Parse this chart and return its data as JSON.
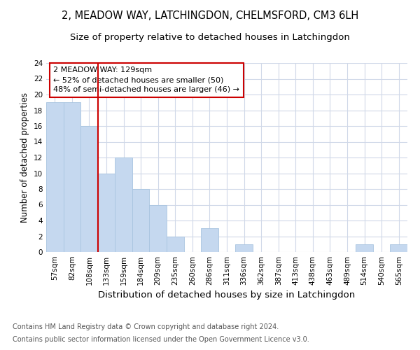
{
  "title_line1": "2, MEADOW WAY, LATCHINGDON, CHELMSFORD, CM3 6LH",
  "title_line2": "Size of property relative to detached houses in Latchingdon",
  "xlabel": "Distribution of detached houses by size in Latchingdon",
  "ylabel": "Number of detached properties",
  "categories": [
    "57sqm",
    "82sqm",
    "108sqm",
    "133sqm",
    "159sqm",
    "184sqm",
    "209sqm",
    "235sqm",
    "260sqm",
    "286sqm",
    "311sqm",
    "336sqm",
    "362sqm",
    "387sqm",
    "413sqm",
    "438sqm",
    "463sqm",
    "489sqm",
    "514sqm",
    "540sqm",
    "565sqm"
  ],
  "values": [
    19,
    19,
    16,
    10,
    12,
    8,
    6,
    2,
    0,
    3,
    0,
    1,
    0,
    0,
    0,
    0,
    0,
    0,
    1,
    0,
    1
  ],
  "bar_color": "#c5d8ef",
  "bar_edge_color": "#a8c4e0",
  "vline_color": "#cc0000",
  "vline_x_index": 2,
  "annotation_text": "2 MEADOW WAY: 129sqm\n← 52% of detached houses are smaller (50)\n48% of semi-detached houses are larger (46) →",
  "annotation_box_color": "#ffffff",
  "annotation_box_edge_color": "#cc0000",
  "ylim": [
    0,
    24
  ],
  "yticks": [
    0,
    2,
    4,
    6,
    8,
    10,
    12,
    14,
    16,
    18,
    20,
    22,
    24
  ],
  "grid_color": "#d0d8e8",
  "background_color": "#ffffff",
  "footer_line1": "Contains HM Land Registry data © Crown copyright and database right 2024.",
  "footer_line2": "Contains public sector information licensed under the Open Government Licence v3.0.",
  "title_fontsize": 10.5,
  "subtitle_fontsize": 9.5,
  "ylabel_fontsize": 8.5,
  "xlabel_fontsize": 9.5,
  "tick_fontsize": 7.5,
  "annot_fontsize": 8,
  "footer_fontsize": 7
}
